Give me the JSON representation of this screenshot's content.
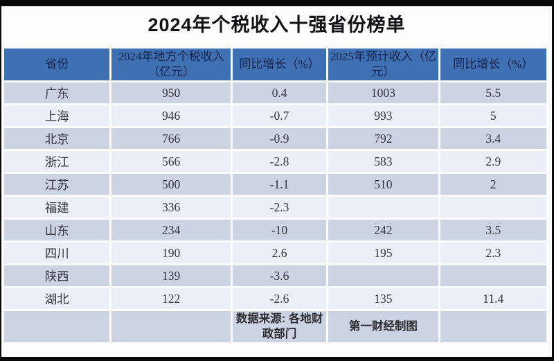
{
  "title": "2024年个税收入十强省份榜单",
  "colors": {
    "header_bg": "#4070b4",
    "header_text": "#14234a",
    "row_odd_bg": "#ccd3e3",
    "row_even_bg": "#edeff8",
    "body_text": "#35363e",
    "title_text": "#111114",
    "page_bg": "#fdfdfd",
    "frame": "#0a0a0a"
  },
  "chart_data": {
    "type": "table",
    "title": "2024年个税收入十强省份榜单",
    "columns": [
      "省份",
      "2024年地方个税收入（亿元）",
      "同比增长（%）",
      "2025年预计收入（亿元）",
      "同比增长（%）"
    ],
    "rows": [
      [
        "广东",
        "950",
        "0.4",
        "1003",
        "5.5"
      ],
      [
        "上海",
        "946",
        "-0.7",
        "993",
        "5"
      ],
      [
        "北京",
        "766",
        "-0.9",
        "792",
        "3.4"
      ],
      [
        "浙江",
        "566",
        "-2.8",
        "583",
        "2.9"
      ],
      [
        "江苏",
        "500",
        "-1.1",
        "510",
        "2"
      ],
      [
        "福建",
        "336",
        "-2.3",
        "",
        ""
      ],
      [
        "山东",
        "234",
        "-10",
        "242",
        "3.5"
      ],
      [
        "四川",
        "190",
        "2.6",
        "195",
        "2.3"
      ],
      [
        "陕西",
        "139",
        "-3.6",
        "",
        ""
      ],
      [
        "湖北",
        "122",
        "-2.6",
        "135",
        "11.4"
      ]
    ],
    "footer": [
      "",
      "",
      "数据来源: 各地财政部门",
      "第一财经制图",
      ""
    ]
  }
}
